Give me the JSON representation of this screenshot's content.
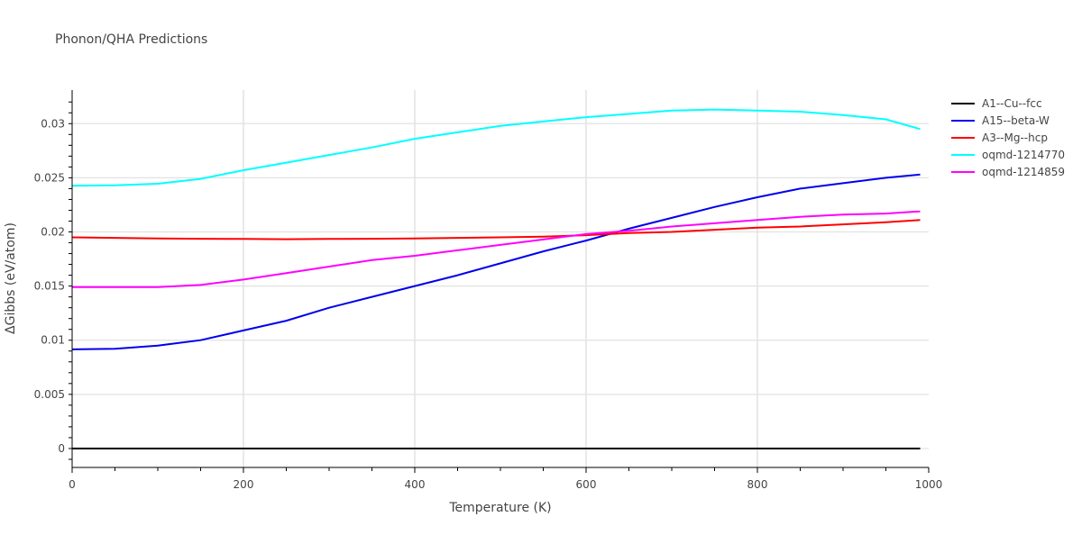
{
  "chart_data": {
    "type": "line",
    "title": "Phonon/QHA Predictions",
    "xlabel": "Temperature (K)",
    "ylabel": "ΔGibbs (eV/atom)",
    "xlim": [
      0,
      1000
    ],
    "ylim": [
      -0.00175,
      0.0331
    ],
    "xticks": [
      0,
      200,
      400,
      600,
      800,
      1000
    ],
    "yticks": [
      0,
      0.005,
      0.01,
      0.015,
      0.02,
      0.025,
      0.03
    ],
    "ytick_labels": [
      "0",
      "0.005",
      "0.01",
      "0.015",
      "0.02",
      "0.025",
      "0.03"
    ],
    "grid": true,
    "legend_position": "top-right",
    "x": [
      0,
      50,
      100,
      150,
      200,
      250,
      300,
      350,
      400,
      450,
      500,
      550,
      600,
      650,
      700,
      750,
      800,
      850,
      900,
      950,
      990
    ],
    "series": [
      {
        "name": "A1--Cu--fcc",
        "color": "#000000",
        "values": [
          0,
          0,
          0,
          0,
          0,
          0,
          0,
          0,
          0,
          0,
          0,
          0,
          0,
          0,
          0,
          0,
          0,
          0,
          0,
          0,
          0
        ]
      },
      {
        "name": "A15--beta-W",
        "color": "#0000ee",
        "values": [
          0.00915,
          0.0092,
          0.0095,
          0.01,
          0.0109,
          0.0118,
          0.013,
          0.014,
          0.015,
          0.016,
          0.0171,
          0.0182,
          0.0192,
          0.0203,
          0.0213,
          0.0223,
          0.0232,
          0.024,
          0.0245,
          0.025,
          0.0253
        ]
      },
      {
        "name": "A3--Mg--hcp",
        "color": "#ff0000",
        "values": [
          0.0195,
          0.01945,
          0.0194,
          0.01937,
          0.01935,
          0.01933,
          0.01935,
          0.01937,
          0.0194,
          0.01945,
          0.0195,
          0.01957,
          0.0197,
          0.0199,
          0.02,
          0.0202,
          0.0204,
          0.0205,
          0.0207,
          0.0209,
          0.0211
        ]
      },
      {
        "name": "oqmd-1214770",
        "color": "#00ffff",
        "values": [
          0.02427,
          0.0243,
          0.02445,
          0.0249,
          0.0257,
          0.0264,
          0.0271,
          0.0278,
          0.0286,
          0.0292,
          0.0298,
          0.0302,
          0.0306,
          0.0309,
          0.0312,
          0.0313,
          0.0312,
          0.0311,
          0.0308,
          0.0304,
          0.0295
        ]
      },
      {
        "name": "oqmd-1214859",
        "color": "#ff00ff",
        "values": [
          0.0149,
          0.0149,
          0.0149,
          0.0151,
          0.0156,
          0.0162,
          0.0168,
          0.0174,
          0.0178,
          0.0183,
          0.0188,
          0.0193,
          0.0198,
          0.0201,
          0.0205,
          0.0208,
          0.0211,
          0.0214,
          0.0216,
          0.0217,
          0.0219
        ]
      }
    ]
  }
}
